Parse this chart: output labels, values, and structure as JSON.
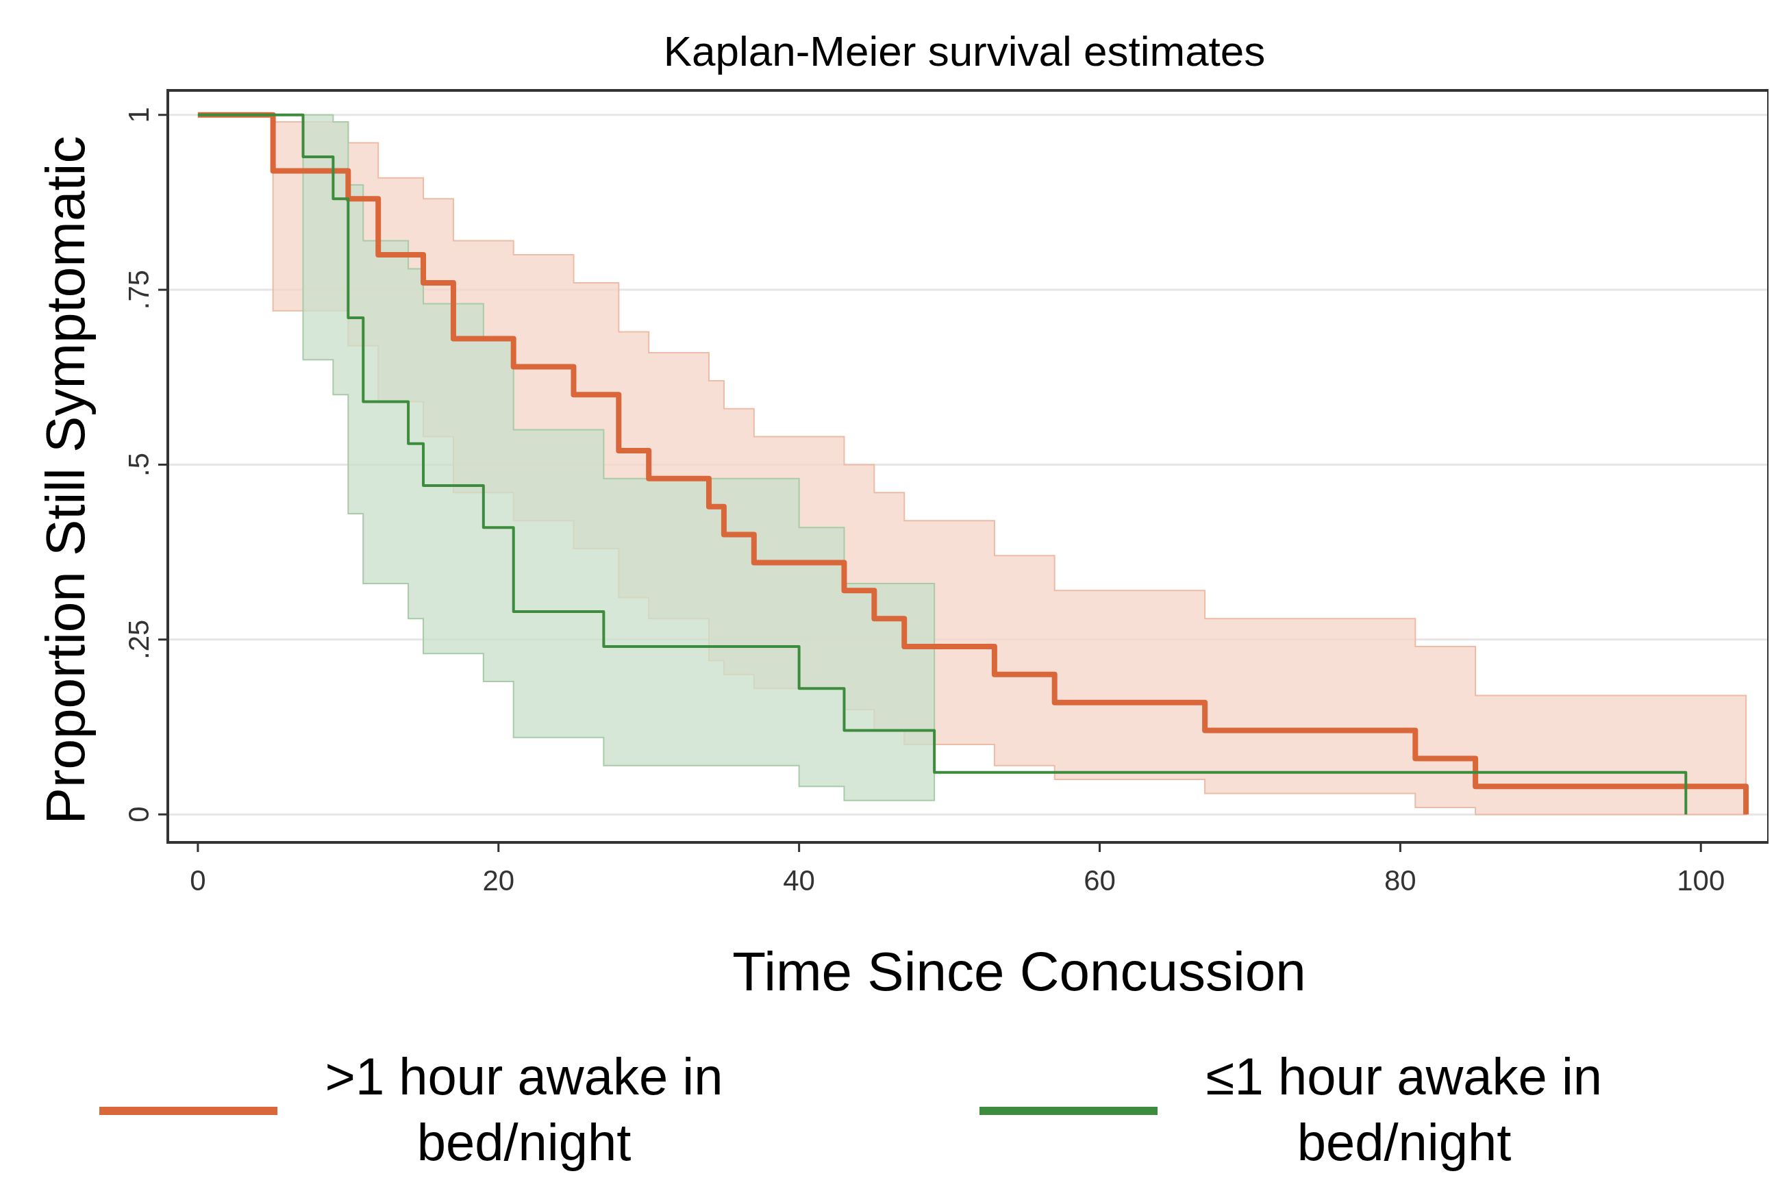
{
  "chart_data": {
    "type": "step",
    "title": "Kaplan-Meier survival estimates",
    "xlabel": "Time Since Concussion",
    "ylabel": "Proportion Still Symptomatic",
    "xlim": [
      -2,
      104.5
    ],
    "ylim": [
      -0.04,
      1.035
    ],
    "xticks": [
      0,
      20,
      40,
      60,
      80,
      100
    ],
    "yticks": [
      0,
      {
        "value": 0.25,
        "label": ".25"
      },
      {
        "value": 0.5,
        "label": ".5"
      },
      {
        "value": 0.75,
        "label": ".75"
      },
      1
    ],
    "grid": "y",
    "legend": "bottom",
    "series": [
      {
        "name": ">1 hour awake in bed/night",
        "color": "#d9673a",
        "x": [
          0,
          5,
          10,
          12,
          15,
          17,
          21,
          25,
          28,
          30,
          34,
          35,
          37,
          43,
          45,
          47,
          53,
          57,
          67,
          81,
          85,
          103
        ],
        "values": [
          1,
          0.92,
          0.88,
          0.8,
          0.76,
          0.68,
          0.64,
          0.6,
          0.52,
          0.48,
          0.44,
          0.4,
          0.36,
          0.32,
          0.28,
          0.24,
          0.2,
          0.16,
          0.12,
          0.08,
          0.04,
          0
        ],
        "upper": [
          1,
          0.99,
          0.96,
          0.91,
          0.88,
          0.82,
          0.8,
          0.76,
          0.69,
          0.66,
          0.62,
          0.58,
          0.54,
          0.5,
          0.46,
          0.42,
          0.37,
          0.32,
          0.28,
          0.24,
          0.17,
          0.17
        ],
        "lower": [
          1,
          0.72,
          0.67,
          0.59,
          0.54,
          0.46,
          0.42,
          0.38,
          0.31,
          0.28,
          0.22,
          0.2,
          0.18,
          0.15,
          0.12,
          0.1,
          0.07,
          0.05,
          0.03,
          0.01,
          0,
          0
        ]
      },
      {
        "name": "≤1 hour awake in bed/night",
        "color": "#3d8c3d",
        "x": [
          0,
          7,
          9,
          10,
          11,
          14,
          15,
          19,
          21,
          27,
          40,
          43,
          49,
          99
        ],
        "values": [
          1,
          0.94,
          0.88,
          0.71,
          0.59,
          0.53,
          0.47,
          0.41,
          0.29,
          0.24,
          0.18,
          0.12,
          0.06,
          0
        ],
        "upper": [
          1,
          1,
          0.99,
          0.9,
          0.82,
          0.78,
          0.73,
          0.68,
          0.55,
          0.48,
          0.41,
          0.33,
          0.33,
          null
        ],
        "lower": [
          1,
          0.65,
          0.6,
          0.43,
          0.33,
          0.28,
          0.23,
          0.19,
          0.11,
          0.07,
          0.04,
          0.02,
          0.02,
          null
        ]
      }
    ]
  }
}
